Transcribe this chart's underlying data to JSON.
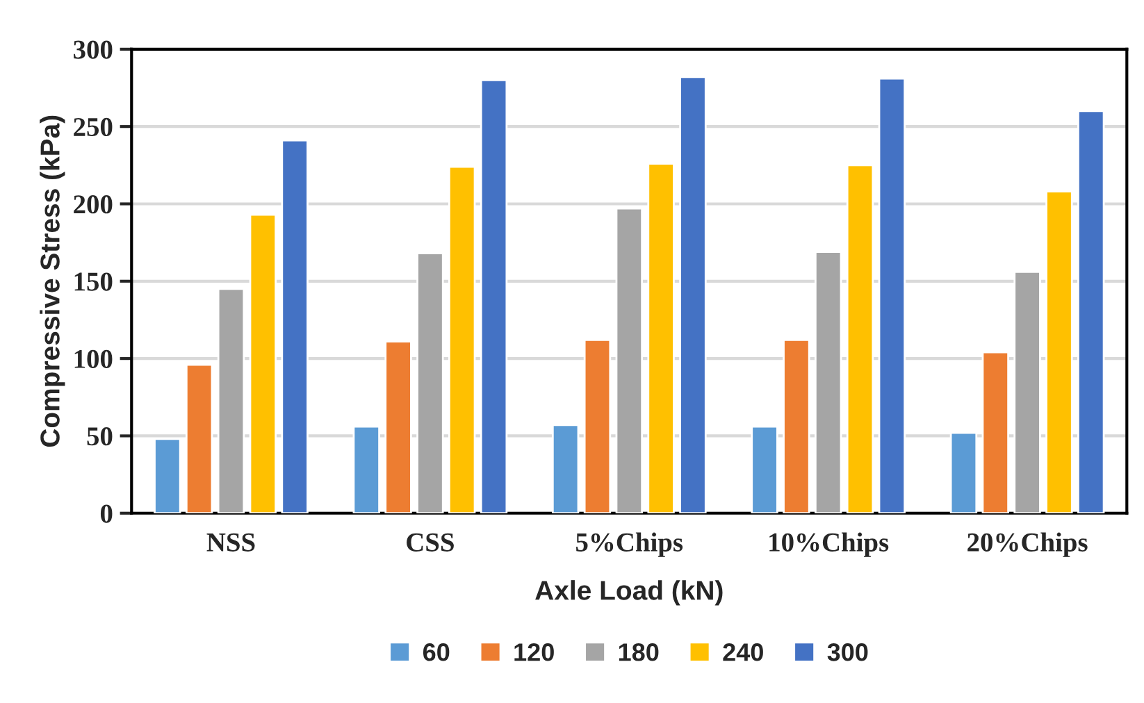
{
  "chart_data": {
    "type": "bar",
    "xlabel": "Axle Load (kN)",
    "ylabel": "Compressive Stress (kPa)",
    "categories": [
      "NSS",
      "CSS",
      "5%Chips",
      "10%Chips",
      "20%Chips"
    ],
    "series": [
      {
        "name": "60",
        "color": "#5b9bd5",
        "values": [
          48,
          56,
          57,
          56,
          52
        ]
      },
      {
        "name": "120",
        "color": "#ed7d31",
        "values": [
          96,
          111,
          112,
          112,
          104
        ]
      },
      {
        "name": "180",
        "color": "#a5a5a5",
        "values": [
          145,
          168,
          197,
          169,
          156
        ]
      },
      {
        "name": "240",
        "color": "#ffc000",
        "values": [
          193,
          224,
          226,
          225,
          208
        ]
      },
      {
        "name": "300",
        "color": "#4472c4",
        "values": [
          241,
          280,
          282,
          281,
          260
        ]
      }
    ],
    "ylim": [
      0,
      300
    ],
    "yticks": [
      0,
      50,
      100,
      150,
      200,
      250,
      300
    ],
    "grid": "y",
    "legend": "bottom"
  }
}
